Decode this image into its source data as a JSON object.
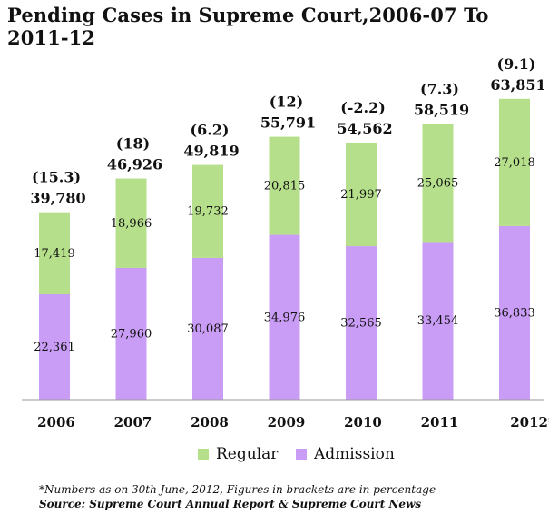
{
  "page": {
    "title": "Pending Cases in Supreme Court,2006-07 To 2011-12",
    "footnote": "*Numbers as on 30th June, 2012, Figures in brackets are in percentage",
    "source": "Source: Supreme Court Annual Report & Supreme Court News"
  },
  "colors": {
    "regular": "#b5df8a",
    "admission": "#c99cf6",
    "axis": "#9a9a9a"
  },
  "legend": {
    "regular": "Regular",
    "admission": "Admission"
  },
  "chart_data": {
    "type": "bar",
    "stacked": true,
    "title": "Pending Cases in Supreme Court,2006-07 To 2011-12",
    "categories": [
      "2006",
      "2007",
      "2008",
      "2009",
      "2010",
      "2011",
      "2012*"
    ],
    "series": [
      {
        "name": "Admission",
        "values": [
          22361,
          27960,
          30087,
          34976,
          32565,
          33454,
          36833
        ]
      },
      {
        "name": "Regular",
        "values": [
          17419,
          18966,
          19732,
          20815,
          21997,
          25065,
          27018
        ]
      }
    ],
    "totals": [
      "39,780",
      "46,926",
      "49,819",
      "55,791",
      "54,562",
      "58,519",
      "63,851"
    ],
    "growth_labels": [
      "(15.3)",
      "(18)",
      "(6.2)",
      "(12)",
      "(-2.2)",
      "(7.3)",
      "(9.1)"
    ],
    "admission_labels": [
      "22,361",
      "27,960",
      "30,087",
      "34,976",
      "32,565",
      "33,454",
      "36,833"
    ],
    "regular_labels": [
      "17,419",
      "18,966",
      "19,732",
      "20,815",
      "21,997",
      "25,065",
      "27,018"
    ],
    "ylim": [
      0,
      70000
    ],
    "grid": false,
    "legend_position": "bottom"
  }
}
